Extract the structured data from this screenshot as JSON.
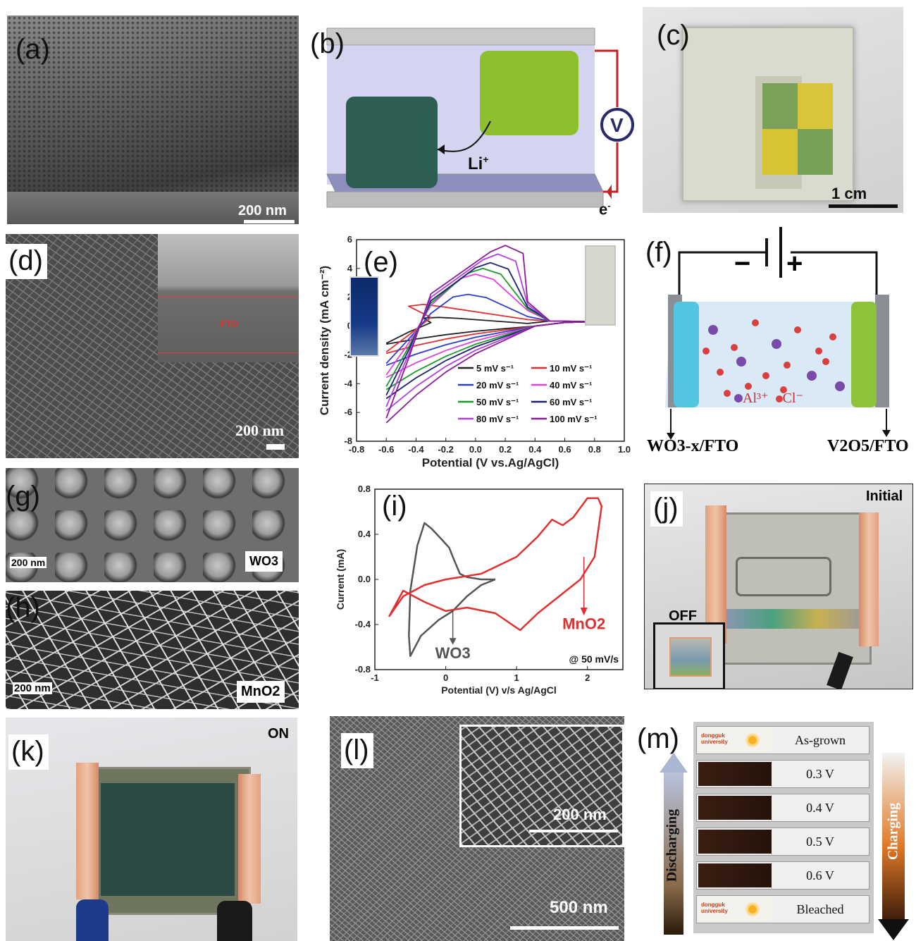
{
  "panels": {
    "a": {
      "label": "(a)",
      "scale": "200 nm"
    },
    "b": {
      "label": "(b)",
      "ion": "Li",
      "ion_sup": "+",
      "electron": "e",
      "electron_sup": "-",
      "voltmeter": "V"
    },
    "c": {
      "label": "(c)",
      "scale": "1 cm"
    },
    "d": {
      "label": "(d)",
      "scale": "200 nm",
      "inset_label": "FTO"
    },
    "e": {
      "label": "(e)"
    },
    "f": {
      "label": "(f)",
      "minus": "−",
      "plus": "+",
      "legend_al": "Al³⁺",
      "legend_cl": "Cl⁻",
      "left_electrode": "WO3-x/FTO",
      "right_electrode": "V2O5/FTO"
    },
    "g": {
      "label": "(g)",
      "scale": "200 nm",
      "material": "WO3"
    },
    "h": {
      "label": "(h)",
      "scale": "200 nm",
      "material": "MnO2"
    },
    "i": {
      "label": "(i)"
    },
    "j": {
      "label": "(j)",
      "state": "Initial",
      "inset": "OFF"
    },
    "k": {
      "label": "(k)",
      "state": "ON"
    },
    "l": {
      "label": "(l)",
      "scale": "500 nm",
      "inset_scale": "200 nm"
    },
    "m": {
      "label": "(m)",
      "left_arrow": "Discharging",
      "right_arrow": "Charging",
      "strips": [
        "As-grown",
        "0.3 V",
        "0.4 V",
        "0.5 V",
        "0.6 V",
        "Bleached"
      ],
      "logo_text": "dongguk university"
    }
  },
  "chart_data": [
    {
      "type": "line",
      "panel": "e",
      "xlabel": "Potential (V vs.Ag/AgCl)",
      "ylabel": "Current density (mA cm⁻²)",
      "xlim": [
        -0.8,
        1.0
      ],
      "ylim": [
        -8,
        6
      ],
      "xticks": [
        "-0.8",
        "-0.6",
        "-0.4",
        "-0.2",
        "0.0",
        "0.2",
        "0.4",
        "0.6",
        "0.8",
        "1.0"
      ],
      "yticks": [
        "-8",
        "-6",
        "-4",
        "-2",
        "0",
        "2",
        "4",
        "6"
      ],
      "legend_placement": "lower-right",
      "series": [
        {
          "name": "5 mV s⁻¹",
          "color": "#222222",
          "anodic_peak": [
            -0.25,
            0.6
          ],
          "start_current": -1.2
        },
        {
          "name": "10 mV s⁻¹",
          "color": "#e03030",
          "anodic_peak": [
            -0.35,
            1.5
          ],
          "start_current": -1.8
        },
        {
          "name": "20 mV s⁻¹",
          "color": "#2a3bd0",
          "anodic_peak": [
            -0.05,
            2.2
          ],
          "start_current": -2.6
        },
        {
          "name": "40 mV s⁻¹",
          "color": "#e040e0",
          "anodic_peak": [
            0.0,
            3.6
          ],
          "start_current": -3.4
        },
        {
          "name": "50 mV s⁻¹",
          "color": "#1a9a2a",
          "anodic_peak": [
            0.05,
            4.0
          ],
          "start_current": -4.2
        },
        {
          "name": "60 mV s⁻¹",
          "color": "#1a2070",
          "anodic_peak": [
            0.1,
            4.4
          ],
          "start_current": -4.8
        },
        {
          "name": "80 mV s⁻¹",
          "color": "#b040e0",
          "anodic_peak": [
            0.15,
            5.0
          ],
          "start_current": -5.6
        },
        {
          "name": "100 mV s⁻¹",
          "color": "#8a1a9a",
          "anodic_peak": [
            0.2,
            5.6
          ],
          "start_current": -6.4
        }
      ]
    },
    {
      "type": "line",
      "panel": "i",
      "xlabel": "Potential (V) v/s Ag/AgCl",
      "ylabel": "Current (mA)",
      "xlim": [
        -1,
        2.5
      ],
      "ylim": [
        -0.8,
        0.8
      ],
      "xticks": [
        "-1",
        "0",
        "1",
        "2"
      ],
      "yticks": [
        "-0.8",
        "-0.4",
        "0.0",
        "0.4",
        "0.8"
      ],
      "annotation": "@ 50 mV/s",
      "series": [
        {
          "name": "WO3",
          "color": "#555555",
          "points": [
            [
              0.7,
              0.0
            ],
            [
              0.5,
              0.0
            ],
            [
              0.3,
              0.02
            ],
            [
              0.2,
              0.05
            ],
            [
              0.1,
              0.2
            ],
            [
              0.05,
              0.28
            ],
            [
              -0.05,
              0.35
            ],
            [
              -0.2,
              0.45
            ],
            [
              -0.3,
              0.5
            ],
            [
              -0.4,
              0.3
            ],
            [
              -0.5,
              -0.1
            ],
            [
              -0.52,
              -0.5
            ],
            [
              -0.5,
              -0.68
            ],
            [
              -0.35,
              -0.5
            ],
            [
              -0.1,
              -0.36
            ],
            [
              0.1,
              -0.28
            ],
            [
              0.3,
              -0.15
            ],
            [
              0.5,
              -0.05
            ],
            [
              0.7,
              0.0
            ]
          ]
        },
        {
          "name": "MnO2",
          "color": "#e03030",
          "points": [
            [
              -0.8,
              -0.33
            ],
            [
              -0.6,
              -0.15
            ],
            [
              -0.3,
              -0.05
            ],
            [
              0.0,
              0.0
            ],
            [
              0.5,
              0.05
            ],
            [
              1.0,
              0.2
            ],
            [
              1.3,
              0.38
            ],
            [
              1.5,
              0.53
            ],
            [
              1.65,
              0.48
            ],
            [
              1.8,
              0.55
            ],
            [
              2.0,
              0.72
            ],
            [
              2.15,
              0.72
            ],
            [
              2.2,
              0.65
            ],
            [
              2.1,
              0.2
            ],
            [
              1.9,
              0.0
            ],
            [
              1.6,
              -0.15
            ],
            [
              1.3,
              -0.3
            ],
            [
              1.05,
              -0.45
            ],
            [
              0.7,
              -0.3
            ],
            [
              0.3,
              -0.25
            ],
            [
              0.0,
              -0.28
            ],
            [
              -0.3,
              -0.2
            ],
            [
              -0.6,
              -0.1
            ],
            [
              -0.8,
              -0.33
            ]
          ]
        }
      ]
    }
  ]
}
